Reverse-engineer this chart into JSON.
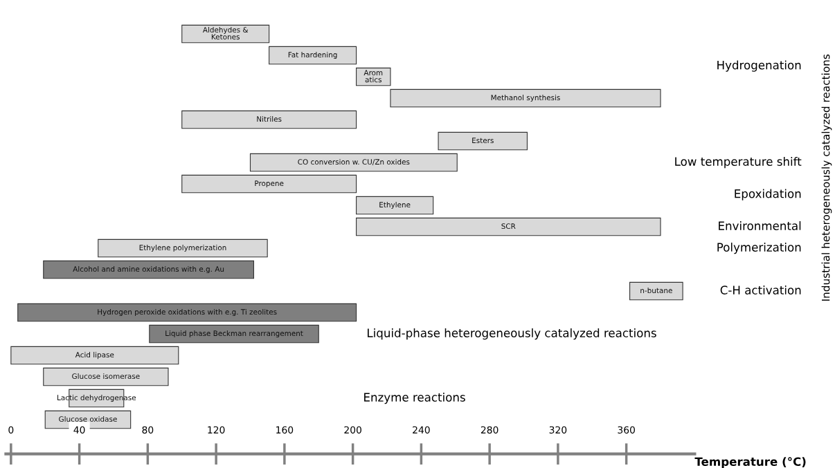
{
  "chart_data": {
    "type": "bar",
    "orientation": "horizontal",
    "xlabel": "Temperature (°C)",
    "categories": [
      "Aldehydes &\nKetones",
      "Fat hardening",
      "Arom\natics",
      "Methanol synthesis",
      "Nitriles",
      "Esters",
      "CO conversion w. CU/Zn oxides",
      "Propene",
      "Ethylene",
      "SCR",
      "Ethylene polymerization",
      "Alcohol and amine oxidations with e.g. Au",
      "n-butane",
      "Hydrogen peroxide oxidations with e.g. Ti zeolites",
      "Liquid phase Beckman rearrangement",
      "Acid lipase",
      "Glucose isomerase",
      "Lactic dehydrogenase",
      "Glucose oxidase"
    ],
    "base": [
      100,
      151,
      202,
      222,
      100,
      250,
      140,
      100,
      202,
      202,
      51,
      19,
      362,
      4,
      81,
      0,
      19,
      34,
      20
    ],
    "values": [
      51,
      51,
      20,
      158,
      102,
      52,
      121,
      102,
      45,
      178,
      99,
      123,
      31,
      198,
      99,
      98,
      73,
      32,
      50
    ],
    "colors": [
      "#d9d9d9",
      "#d9d9d9",
      "#d9d9d9",
      "#d9d9d9",
      "#d9d9d9",
      "#d9d9d9",
      "#d9d9d9",
      "#d9d9d9",
      "#d9d9d9",
      "#d9d9d9",
      "#d9d9d9",
      "#7f7f7f",
      "#d9d9d9",
      "#7f7f7f",
      "#7f7f7f",
      "#d9d9d9",
      "#d9d9d9",
      "#d9d9d9",
      "#d9d9d9"
    ],
    "xlim": [
      -3,
      400
    ],
    "xticks": [
      0,
      40,
      80,
      120,
      160,
      200,
      240,
      280,
      320,
      360
    ],
    "grid": false,
    "legend": false,
    "annotations": [
      "Hydrogenation",
      "Low temperature shift",
      "Epoxidation",
      "Environmental",
      "Polymerization",
      "C-H activation",
      "Liquid-phase heterogeneously catalyzed reactions",
      "Enzyme reactions",
      "Industrial heterogeneously catalyzed reactions"
    ]
  }
}
